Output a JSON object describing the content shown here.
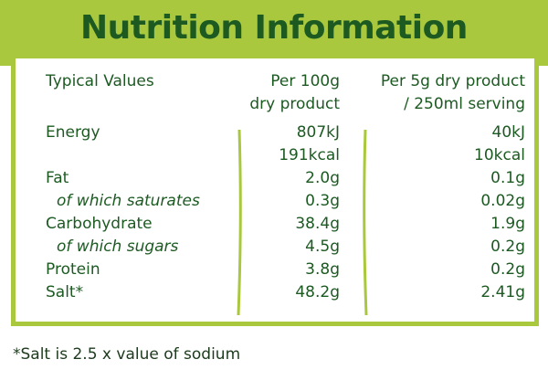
{
  "header": {
    "title": "Nutrition Information"
  },
  "table": {
    "columns": [
      [
        "Typical Values"
      ],
      [
        "Per 100g",
        "dry product"
      ],
      [
        "Per 5g dry product",
        "/ 250ml serving"
      ]
    ],
    "rows": [
      {
        "label": "Energy",
        "per_100g": [
          "807kJ",
          "191kcal"
        ],
        "per_serving": [
          "40kJ",
          "10kcal"
        ]
      },
      {
        "label": "Fat",
        "per_100g": [
          "2.0g"
        ],
        "per_serving": [
          "0.1g"
        ]
      },
      {
        "label": "of which saturates",
        "italic": true,
        "per_100g": [
          "0.3g"
        ],
        "per_serving": [
          "0.02g"
        ]
      },
      {
        "label": "Carbohydrate",
        "per_100g": [
          "38.4g"
        ],
        "per_serving": [
          "1.9g"
        ]
      },
      {
        "label": "of which sugars",
        "italic": true,
        "per_100g": [
          "4.5g"
        ],
        "per_serving": [
          "0.2g"
        ]
      },
      {
        "label": "Protein",
        "per_100g": [
          "3.8g"
        ],
        "per_serving": [
          "0.2g"
        ]
      },
      {
        "label": "Salt*",
        "per_100g": [
          "48.2g"
        ],
        "per_serving": [
          "2.41g"
        ]
      }
    ]
  },
  "footnote": "*Salt is 2.5 x value of sodium"
}
